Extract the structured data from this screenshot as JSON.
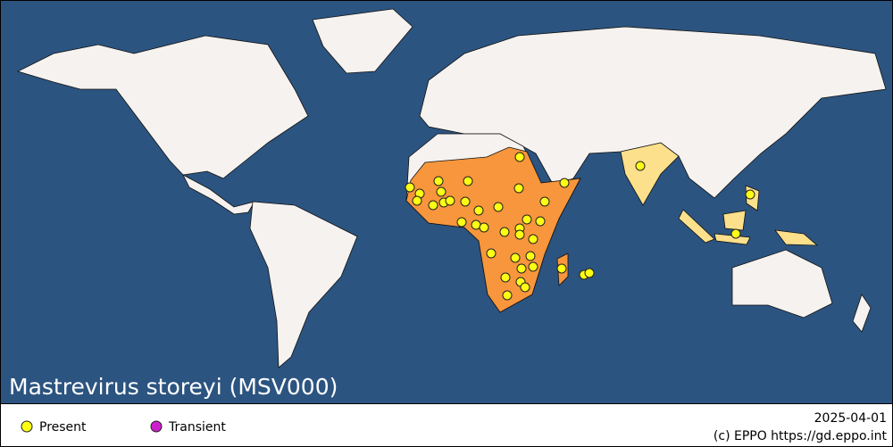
{
  "title": "Mastrevirus storeyi (MSV000)",
  "legend": {
    "present": "Present",
    "transient": "Transient"
  },
  "date": "2025-04-01",
  "credit": "(c) EPPO https://gd.eppo.int"
}
